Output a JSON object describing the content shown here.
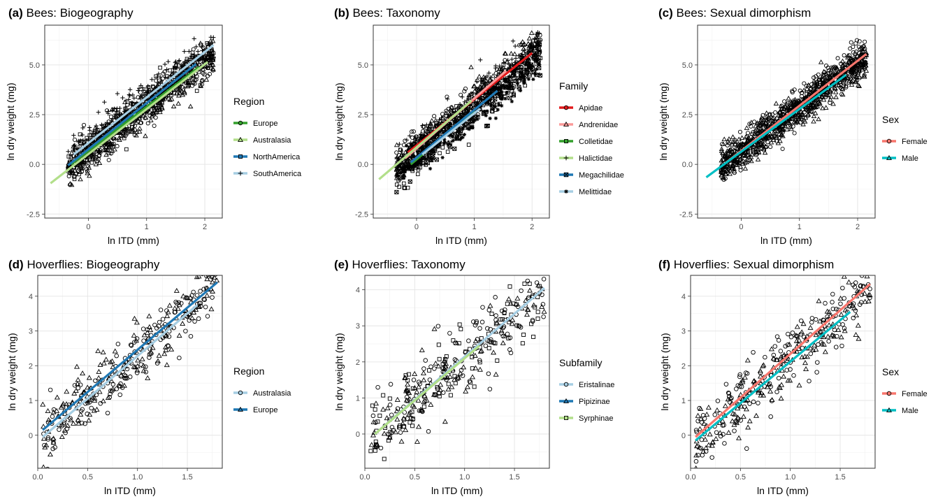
{
  "chart_data": [
    {
      "type": "scatter",
      "tag": "(a)",
      "title": "Bees: Biogeography",
      "xlabel": "ln ITD (mm)",
      "ylabel": "ln dry weight (mg)",
      "xlim": [
        -0.75,
        2.3
      ],
      "ylim": [
        -2.7,
        7.0
      ],
      "xticks": [
        0,
        1,
        2
      ],
      "xticklabels": [
        "0",
        "1",
        "2"
      ],
      "yticks": [
        -2.5,
        0,
        2.5,
        5
      ],
      "yticklabels": [
        "-2.5",
        "0.0",
        "2.5",
        "5.0"
      ],
      "grid": true,
      "legend_title": "Region",
      "legend_position": "right",
      "point_range": {
        "x": [
          -0.35,
          2.15
        ],
        "y_spread": 0.45
      },
      "series": [
        {
          "name": "Europe",
          "color": "#33a02c",
          "shape": "circle",
          "fit": {
            "x": [
              -0.3,
              1.9
            ],
            "y": [
              0.0,
              4.9
            ]
          }
        },
        {
          "name": "Australasia",
          "color": "#b2df8a",
          "shape": "triangle",
          "fit": {
            "x": [
              -0.65,
              2.05
            ],
            "y": [
              -0.95,
              5.15
            ]
          }
        },
        {
          "name": "NorthAmerica",
          "color": "#1f78b4",
          "shape": "square",
          "fit": {
            "x": [
              -0.35,
              1.85
            ],
            "y": [
              -0.05,
              5.05
            ]
          }
        },
        {
          "name": "SouthAmerica",
          "color": "#a6cee3",
          "shape": "plus",
          "fit": {
            "x": [
              -0.25,
              2.15
            ],
            "y": [
              0.5,
              6.0
            ]
          }
        }
      ]
    },
    {
      "type": "scatter",
      "tag": "(b)",
      "title": "Bees: Taxonomy",
      "xlabel": "ln ITD (mm)",
      "ylabel": "ln dry weight (mg)",
      "xlim": [
        -0.75,
        2.3
      ],
      "ylim": [
        -2.7,
        7.0
      ],
      "xticks": [
        0,
        1,
        2
      ],
      "xticklabels": [
        "0",
        "1",
        "2"
      ],
      "yticks": [
        -2.5,
        0,
        2.5,
        5
      ],
      "yticklabels": [
        "-2.5",
        "0.0",
        "2.5",
        "5.0"
      ],
      "grid": true,
      "legend_title": "Family",
      "legend_position": "right",
      "point_range": {
        "x": [
          -0.35,
          2.15
        ],
        "y_spread": 0.45
      },
      "series": [
        {
          "name": "Apidae",
          "color": "#e31a1c",
          "shape": "circle",
          "fit": {
            "x": [
              -0.15,
              2.0
            ],
            "y": [
              0.6,
              5.6
            ]
          }
        },
        {
          "name": "Andrenidae",
          "color": "#fb9a99",
          "shape": "triangle",
          "fit": {
            "x": [
              -0.2,
              1.55
            ],
            "y": [
              0.3,
              4.7
            ]
          }
        },
        {
          "name": "Colletidae",
          "color": "#33a02c",
          "shape": "square",
          "fit": {
            "x": [
              -0.1,
              1.0
            ],
            "y": [
              0.0,
              2.7
            ]
          }
        },
        {
          "name": "Halictidae",
          "color": "#b2df8a",
          "shape": "plus",
          "fit": {
            "x": [
              -0.65,
              0.95
            ],
            "y": [
              -0.75,
              3.2
            ]
          }
        },
        {
          "name": "Megachilidae",
          "color": "#1f78b4",
          "shape": "squarecross",
          "fit": {
            "x": [
              -0.1,
              1.4
            ],
            "y": [
              0.1,
              3.7
            ]
          }
        },
        {
          "name": "Melittidae",
          "color": "#a6cee3",
          "shape": "asterisk",
          "fit": {
            "x": [
              0.1,
              1.1
            ],
            "y": [
              0.5,
              2.8
            ]
          }
        }
      ]
    },
    {
      "type": "scatter",
      "tag": "(c)",
      "title": "Bees: Sexual dimorphism",
      "xlabel": "ln ITD (mm)",
      "ylabel": "ln dry weight (mg)",
      "xlim": [
        -0.75,
        2.3
      ],
      "ylim": [
        -2.7,
        7.0
      ],
      "xticks": [
        0,
        1,
        2
      ],
      "xticklabels": [
        "0",
        "1",
        "2"
      ],
      "yticks": [
        -2.5,
        0,
        2.5,
        5
      ],
      "yticklabels": [
        "-2.5",
        "0.0",
        "2.5",
        "5.0"
      ],
      "grid": true,
      "legend_title": "Sex",
      "legend_position": "right",
      "point_range": {
        "x": [
          -0.35,
          2.15
        ],
        "y_spread": 0.45
      },
      "series": [
        {
          "name": "Female",
          "color": "#f8766d",
          "shape": "circle",
          "fit": {
            "x": [
              -0.3,
              2.15
            ],
            "y": [
              0.0,
              5.55
            ]
          }
        },
        {
          "name": "Male",
          "color": "#00bfc4",
          "shape": "triangle",
          "fit": {
            "x": [
              -0.6,
              1.8
            ],
            "y": [
              -0.65,
              4.5
            ]
          }
        }
      ]
    },
    {
      "type": "scatter",
      "tag": "(d)",
      "title": "Hoverflies: Biogeography",
      "xlabel": "ln ITD (mm)",
      "ylabel": "ln dry weight (mg)",
      "xlim": [
        0.0,
        1.85
      ],
      "ylim": [
        -0.95,
        4.6
      ],
      "xticks": [
        0,
        0.5,
        1.0,
        1.5
      ],
      "xticklabels": [
        "0.0",
        "0.5",
        "1.0",
        "1.5"
      ],
      "yticks": [
        0,
        1,
        2,
        3,
        4
      ],
      "yticklabels": [
        "0",
        "1",
        "2",
        "3",
        "4"
      ],
      "grid": true,
      "legend_title": "Region",
      "legend_position": "right",
      "point_range": {
        "x": [
          0.05,
          1.8
        ],
        "y_spread": 0.45
      },
      "series": [
        {
          "name": "Australasia",
          "color": "#a6cee3",
          "shape": "circle",
          "fit": {
            "x": [
              0.05,
              1.6
            ],
            "y": [
              -0.05,
              3.75
            ]
          }
        },
        {
          "name": "Europe",
          "color": "#1f78b4",
          "shape": "triangle",
          "fit": {
            "x": [
              0.05,
              1.8
            ],
            "y": [
              0.15,
              4.4
            ]
          }
        }
      ]
    },
    {
      "type": "scatter",
      "tag": "(e)",
      "title": "Hoverflies: Taxonomy",
      "xlabel": "ln ITD (mm)",
      "ylabel": "ln dry weight (mg)",
      "xlim": [
        0.0,
        1.85
      ],
      "ylim": [
        -0.95,
        4.4
      ],
      "xticks": [
        0,
        0.5,
        1.0,
        1.5
      ],
      "xticklabels": [
        "0.0",
        "0.5",
        "1.0",
        "1.5"
      ],
      "yticks": [
        0,
        1,
        2,
        3,
        4
      ],
      "yticklabels": [
        "0",
        "1",
        "2",
        "3",
        "4"
      ],
      "grid": true,
      "legend_title": "Subfamily",
      "legend_position": "right",
      "point_range": {
        "x": [
          0.05,
          1.8
        ],
        "y_spread": 0.45
      },
      "series": [
        {
          "name": "Eristalinae",
          "color": "#a6cee3",
          "shape": "circle",
          "fit": {
            "x": [
              0.1,
              1.8
            ],
            "y": [
              0.0,
              4.05
            ]
          }
        },
        {
          "name": "Pipizinae",
          "color": "#1f78b4",
          "shape": "triangle",
          "fit": {
            "x": [
              0.25,
              0.85
            ],
            "y": [
              0.35,
              1.75
            ]
          }
        },
        {
          "name": "Syrphinae",
          "color": "#b2df8a",
          "shape": "square",
          "fit": {
            "x": [
              0.1,
              1.15
            ],
            "y": [
              0.0,
              2.45
            ]
          }
        }
      ]
    },
    {
      "type": "scatter",
      "tag": "(f)",
      "title": "Hoverflies: Sexual dimorphism",
      "xlabel": "ln ITD (mm)",
      "ylabel": "ln dry weight (mg)",
      "xlim": [
        0.0,
        1.85
      ],
      "ylim": [
        -0.95,
        4.6
      ],
      "xticks": [
        0,
        0.5,
        1.0,
        1.5
      ],
      "xticklabels": [
        "0.0",
        "0.5",
        "1.0",
        "1.5"
      ],
      "yticks": [
        0,
        1,
        2,
        3,
        4
      ],
      "yticklabels": [
        "0",
        "1",
        "2",
        "3",
        "4"
      ],
      "grid": true,
      "legend_title": "Sex",
      "legend_position": "right",
      "point_range": {
        "x": [
          0.05,
          1.8
        ],
        "y_spread": 0.45
      },
      "series": [
        {
          "name": "Female",
          "color": "#f8766d",
          "shape": "circle",
          "fit": {
            "x": [
              0.05,
              1.8
            ],
            "y": [
              -0.05,
              4.35
            ]
          }
        },
        {
          "name": "Male",
          "color": "#00bfc4",
          "shape": "triangle",
          "fit": {
            "x": [
              0.05,
              1.6
            ],
            "y": [
              -0.15,
              3.55
            ]
          }
        }
      ]
    }
  ]
}
